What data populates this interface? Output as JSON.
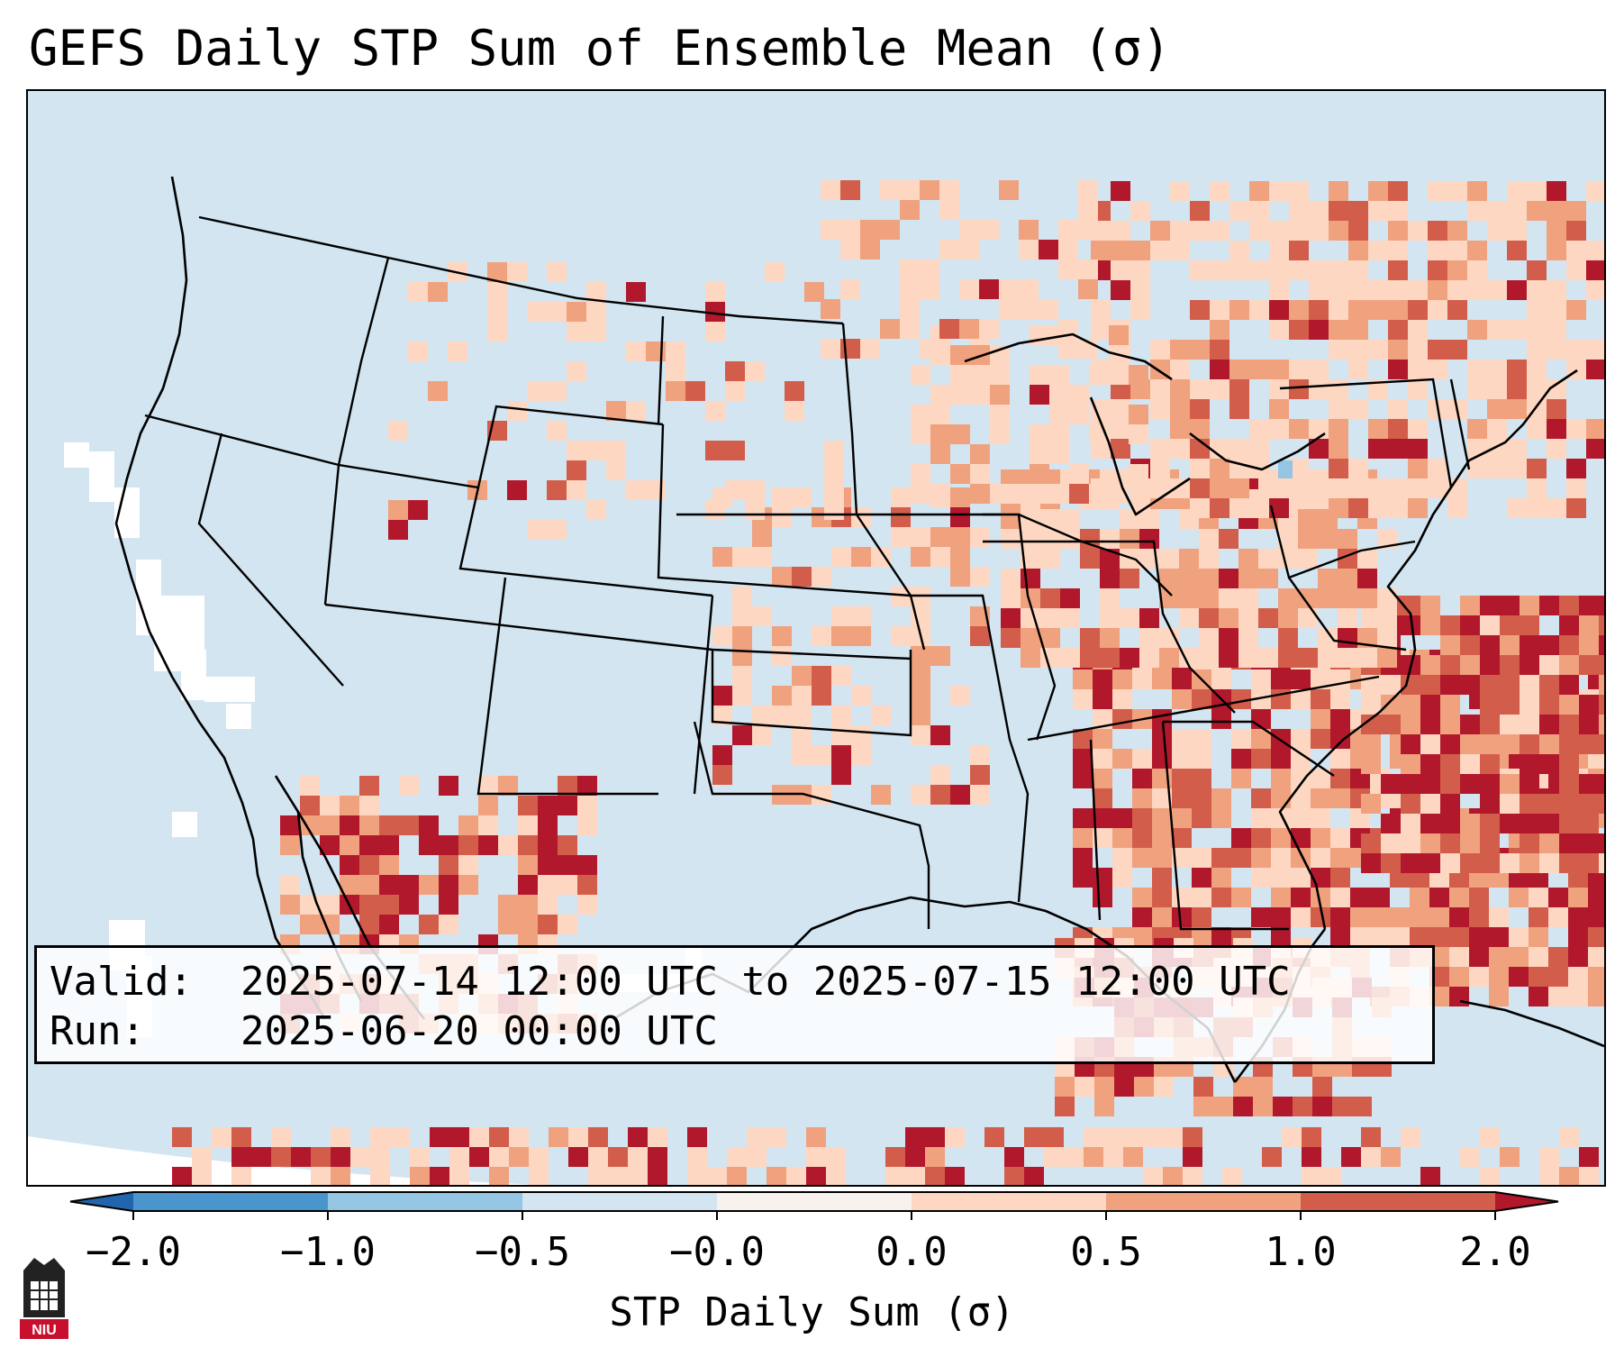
{
  "title": "GEFS Daily STP Sum of Ensemble Mean (σ)",
  "info": {
    "valid_key": "Valid:",
    "valid_value": "2025-07-14 12:00 UTC to 2025-07-15 12:00 UTC",
    "run_key": "Run:",
    "run_value": "2025-06-20 00:00 UTC"
  },
  "colorbar": {
    "label": "STP Daily Sum (σ)",
    "tick_labels": [
      "−2.0",
      "−1.0",
      "−0.5",
      "−0.0",
      "0.0",
      "0.5",
      "1.0",
      "2.0"
    ],
    "bins": [
      {
        "color": "#2f7cc1"
      },
      {
        "color": "#4a96cc"
      },
      {
        "color": "#94c5e2"
      },
      {
        "color": "#d3e5f1"
      },
      {
        "color": "#f8f2ee"
      },
      {
        "color": "#fdd7c1"
      },
      {
        "color": "#f0a17e"
      },
      {
        "color": "#d35d4b"
      },
      {
        "color": "#b2182b"
      }
    ],
    "extend_low_color": "#2166ac",
    "extend_high_color": "#b2182b"
  },
  "map": {
    "background_color": "#d3e5f1",
    "off_disk_color": "#ffffff",
    "border_color": "#000000"
  },
  "logo": {
    "icon": "niu-clocktower-icon",
    "text": "NIU",
    "color": "#c8102e"
  }
}
